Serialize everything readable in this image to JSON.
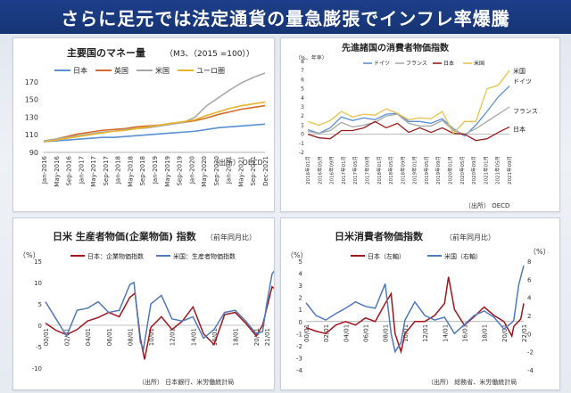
{
  "header": {
    "title": "さらに足元では法定通貨の量急膨張でインフレ率爆騰"
  },
  "chart_data": [
    {
      "type": "line",
      "title": "主要国のマネー量",
      "subtitle": "（M3、（2015 =100））",
      "source": "（出所） OECD",
      "legend_position": "top",
      "grid": false,
      "ylim": [
        90,
        185
      ],
      "yticks": [
        "90",
        "110",
        "130",
        "150",
        "170"
      ],
      "ytick_values": [
        90,
        110,
        130,
        150,
        170
      ],
      "xticks": [
        "Jan-2016",
        "May-2016",
        "Sep-2016",
        "Jan-2017",
        "May-2017",
        "Sep-2017",
        "Jan-2018",
        "May-2018",
        "Sep-2018",
        "Jan-2019",
        "May-2019",
        "Sep-2019",
        "Jan-2020",
        "May-2020",
        "Sep-2020",
        "Jan-2021",
        "May-2021",
        "Sep-2021",
        "Dec-2021"
      ],
      "x": [
        "Jan-2016",
        "May-2016",
        "Sep-2016",
        "Jan-2017",
        "May-2017",
        "Sep-2017",
        "Jan-2018",
        "May-2018",
        "Sep-2018",
        "Jan-2019",
        "May-2019",
        "Sep-2019",
        "Jan-2020",
        "Mar-2020",
        "May-2020",
        "Sep-2020",
        "Jan-2021",
        "May-2021",
        "Sep-2021",
        "Dec-2021"
      ],
      "series": [
        {
          "name": "日本",
          "color": "#5b8fd4",
          "values": [
            102,
            103,
            104,
            105,
            106,
            107,
            107,
            108,
            109,
            110,
            111,
            112,
            113,
            114,
            116,
            118,
            119,
            120,
            121,
            122
          ]
        },
        {
          "name": "英国",
          "color": "#d46a2b",
          "values": [
            103,
            105,
            108,
            111,
            113,
            115,
            116,
            117,
            119,
            120,
            121,
            123,
            124,
            126,
            129,
            133,
            136,
            139,
            141,
            143
          ]
        },
        {
          "name": "米国",
          "color": "#a8a8a8",
          "values": [
            103,
            105,
            107,
            109,
            111,
            113,
            114,
            116,
            117,
            118,
            120,
            122,
            124,
            130,
            143,
            152,
            161,
            169,
            175,
            180
          ]
        },
        {
          "name": "ユーロ圏",
          "color": "#e8b42c",
          "values": [
            102,
            104,
            106,
            108,
            110,
            112,
            114,
            115,
            117,
            119,
            121,
            123,
            125,
            127,
            132,
            136,
            140,
            143,
            145,
            147
          ]
        }
      ]
    },
    {
      "type": "line",
      "title": "先進諸国の消費者物価指数",
      "ylabel": "（%、年率）",
      "source": "（出所） OECD",
      "legend_position": "top",
      "grid": false,
      "ylim": [
        -2,
        8
      ],
      "yticks": [
        "-2",
        "-1",
        "0",
        "1",
        "2",
        "3",
        "4",
        "5",
        "6",
        "7",
        "8"
      ],
      "ytick_values": [
        -2,
        -1,
        0,
        1,
        2,
        3,
        4,
        5,
        6,
        7,
        8
      ],
      "xticks": [
        "2016年01月",
        "2016年05月",
        "2016年09月",
        "2017年01月",
        "2017年05月",
        "2017年09月",
        "2018年01月",
        "2018年05月",
        "2018年09月",
        "2019年01月",
        "2019年05月",
        "2019年09月",
        "2020年01月",
        "2020年05月",
        "2020年09月",
        "2021年01月",
        "2021年05月",
        "2021年09月"
      ],
      "series": [
        {
          "name": "ドイツ",
          "color": "#5b8fd4",
          "end_label": "ドイツ",
          "values": [
            0.5,
            0.1,
            0.7,
            1.9,
            1.5,
            1.8,
            1.6,
            2.2,
            2.3,
            1.4,
            1.4,
            1.2,
            1.7,
            0.6,
            -0.2,
            1.0,
            2.5,
            4.1,
            5.3
          ]
        },
        {
          "name": "フランス",
          "color": "#a8a8a8",
          "end_label": "フランス",
          "values": [
            0.3,
            0.1,
            0.4,
            1.3,
            0.8,
            1.0,
            1.3,
            2.0,
            2.2,
            1.2,
            0.9,
            0.9,
            1.5,
            0.4,
            0.0,
            0.6,
            1.4,
            2.2,
            3.0
          ]
        },
        {
          "name": "日本",
          "color": "#9b1b1b",
          "end_label": "日本",
          "values": [
            0.0,
            -0.4,
            -0.5,
            0.4,
            0.4,
            0.7,
            1.4,
            0.7,
            1.2,
            0.2,
            0.7,
            0.2,
            0.7,
            0.1,
            0.0,
            -0.7,
            -0.5,
            0.2,
            0.8
          ]
        },
        {
          "name": "米国",
          "color": "#e8c24a",
          "end_label": "米国",
          "values": [
            1.4,
            1.0,
            1.5,
            2.5,
            1.9,
            2.2,
            2.1,
            2.8,
            2.3,
            1.6,
            1.8,
            1.7,
            2.5,
            0.1,
            1.4,
            1.4,
            5.0,
            5.4,
            7.0
          ]
        }
      ]
    },
    {
      "type": "line",
      "title": "日米 生産者物価(企業物価) 指数",
      "subtitle": "（前年同月比）",
      "ylabel": "（%）",
      "source": "（出所） 日本銀行、米労働統計局",
      "legend_position": "top",
      "grid": false,
      "ylim": [
        -10,
        15
      ],
      "yticks": [
        "-10",
        "-5",
        "0",
        "5",
        "10",
        "15"
      ],
      "ytick_values": [
        -10,
        -5,
        0,
        5,
        10,
        15
      ],
      "xticks": [
        "00/01",
        "02/01",
        "04/01",
        "06/01",
        "08/01",
        "10/01",
        "12/01",
        "14/01",
        "16/01",
        "18/01",
        "20/01",
        "21/01"
      ],
      "xtick_years": [
        2000,
        2002,
        2004,
        2006,
        2008,
        2010,
        2012,
        2014,
        2016,
        2018,
        2020,
        2021
      ],
      "series": [
        {
          "name": "日本：企業物価指数",
          "color": "#a3141c",
          "points": [
            [
              2000,
              0.5
            ],
            [
              2001,
              -1.2
            ],
            [
              2002,
              -2.2
            ],
            [
              2003,
              -1.0
            ],
            [
              2004,
              1.0
            ],
            [
              2005,
              1.8
            ],
            [
              2006,
              3.0
            ],
            [
              2007,
              2.0
            ],
            [
              2008,
              6.5
            ],
            [
              2008.5,
              7.5
            ],
            [
              2009,
              -3.0
            ],
            [
              2009.4,
              -8.0
            ],
            [
              2010,
              -0.5
            ],
            [
              2011,
              2.0
            ],
            [
              2012,
              -1.0
            ],
            [
              2013,
              1.0
            ],
            [
              2014,
              4.3
            ],
            [
              2015,
              -2.0
            ],
            [
              2016,
              -4.5
            ],
            [
              2017,
              2.5
            ],
            [
              2018,
              3.0
            ],
            [
              2019,
              0.5
            ],
            [
              2020,
              -2.5
            ],
            [
              2020.6,
              0.0
            ],
            [
              2021,
              4.0
            ],
            [
              2021.5,
              9.0
            ],
            [
              2021.8,
              8.5
            ]
          ]
        },
        {
          "name": "米国：生産者物価指数",
          "color": "#4f79bd",
          "points": [
            [
              2000,
              5.5
            ],
            [
              2001,
              1.5
            ],
            [
              2002,
              -2.5
            ],
            [
              2003,
              3.5
            ],
            [
              2004,
              4.0
            ],
            [
              2005,
              5.5
            ],
            [
              2006,
              3.0
            ],
            [
              2007,
              3.5
            ],
            [
              2008,
              9.5
            ],
            [
              2008.4,
              10.0
            ],
            [
              2009,
              -4.0
            ],
            [
              2009.3,
              -5.5
            ],
            [
              2010,
              5.0
            ],
            [
              2011,
              7.0
            ],
            [
              2012,
              1.5
            ],
            [
              2013,
              1.0
            ],
            [
              2014,
              2.0
            ],
            [
              2015,
              -3.0
            ],
            [
              2016,
              -1.0
            ],
            [
              2017,
              3.0
            ],
            [
              2018,
              3.5
            ],
            [
              2019,
              1.0
            ],
            [
              2020,
              -2.0
            ],
            [
              2020.6,
              -1.5
            ],
            [
              2021,
              5.0
            ],
            [
              2021.5,
              12.0
            ],
            [
              2021.8,
              13.0
            ]
          ]
        }
      ]
    },
    {
      "type": "line",
      "title": "日米消費者物価指数",
      "subtitle": "（前年同月比）",
      "ylabel": "（%）",
      "y2label": "（%）",
      "source": "（出所） 総務省、米労働統計局",
      "legend_position": "top",
      "grid": false,
      "ylim": [
        -4,
        5
      ],
      "yticks": [
        "-4",
        "-3",
        "-2",
        "-1",
        "0",
        "1",
        "2",
        "3",
        "4",
        "5"
      ],
      "ytick_values": [
        -4,
        -3,
        -2,
        -1,
        0,
        1,
        2,
        3,
        4,
        5
      ],
      "y2lim": [
        -4,
        8
      ],
      "y2ticks": [
        "-4",
        "-2",
        "0",
        "2",
        "4",
        "6",
        "8"
      ],
      "y2tick_values": [
        -4,
        -2,
        0,
        2,
        4,
        6,
        8
      ],
      "xticks": [
        "00/01",
        "02/01",
        "04/01",
        "06/01",
        "08/01",
        "10/01",
        "12/01",
        "14/01",
        "16/01",
        "18/01",
        "20/01",
        "22/01"
      ],
      "xtick_years": [
        2000,
        2002,
        2004,
        2006,
        2008,
        2010,
        2012,
        2014,
        2016,
        2018,
        2020,
        2022
      ],
      "series": [
        {
          "name": "日本（左軸）",
          "color": "#a3141c",
          "axis": "left",
          "points": [
            [
              2000,
              -0.5
            ],
            [
              2001,
              -0.8
            ],
            [
              2002,
              -1.0
            ],
            [
              2003,
              -0.3
            ],
            [
              2004,
              0.0
            ],
            [
              2005,
              -0.3
            ],
            [
              2006,
              0.3
            ],
            [
              2007,
              0.0
            ],
            [
              2008,
              1.5
            ],
            [
              2008.6,
              2.3
            ],
            [
              2009,
              -1.0
            ],
            [
              2009.6,
              -2.5
            ],
            [
              2010,
              -1.0
            ],
            [
              2011,
              0.0
            ],
            [
              2012,
              0.0
            ],
            [
              2013,
              0.5
            ],
            [
              2014,
              1.5
            ],
            [
              2014.4,
              3.7
            ],
            [
              2015,
              1.0
            ],
            [
              2016,
              -0.3
            ],
            [
              2017,
              0.4
            ],
            [
              2018,
              1.2
            ],
            [
              2019,
              0.5
            ],
            [
              2020,
              0.0
            ],
            [
              2020.8,
              -1.2
            ],
            [
              2021,
              -0.4
            ],
            [
              2021.7,
              0.2
            ],
            [
              2022,
              1.5
            ]
          ]
        },
        {
          "name": "米国（右軸）",
          "color": "#4f79bd",
          "axis": "right",
          "points": [
            [
              2000,
              3.4
            ],
            [
              2001,
              2.0
            ],
            [
              2002,
              1.5
            ],
            [
              2003,
              2.2
            ],
            [
              2004,
              2.8
            ],
            [
              2005,
              3.5
            ],
            [
              2006,
              3.0
            ],
            [
              2007,
              2.8
            ],
            [
              2008,
              5.5
            ],
            [
              2008.6,
              0.0
            ],
            [
              2009,
              -2.0
            ],
            [
              2009.6,
              -1.0
            ],
            [
              2010,
              1.5
            ],
            [
              2011,
              3.5
            ],
            [
              2012,
              2.0
            ],
            [
              2013,
              1.5
            ],
            [
              2014,
              1.8
            ],
            [
              2015,
              0.0
            ],
            [
              2016,
              1.0
            ],
            [
              2017,
              2.0
            ],
            [
              2018,
              2.5
            ],
            [
              2019,
              1.8
            ],
            [
              2020,
              0.5
            ],
            [
              2020.8,
              1.2
            ],
            [
              2021,
              1.5
            ],
            [
              2021.5,
              5.4
            ],
            [
              2022,
              7.5
            ]
          ]
        }
      ]
    }
  ]
}
